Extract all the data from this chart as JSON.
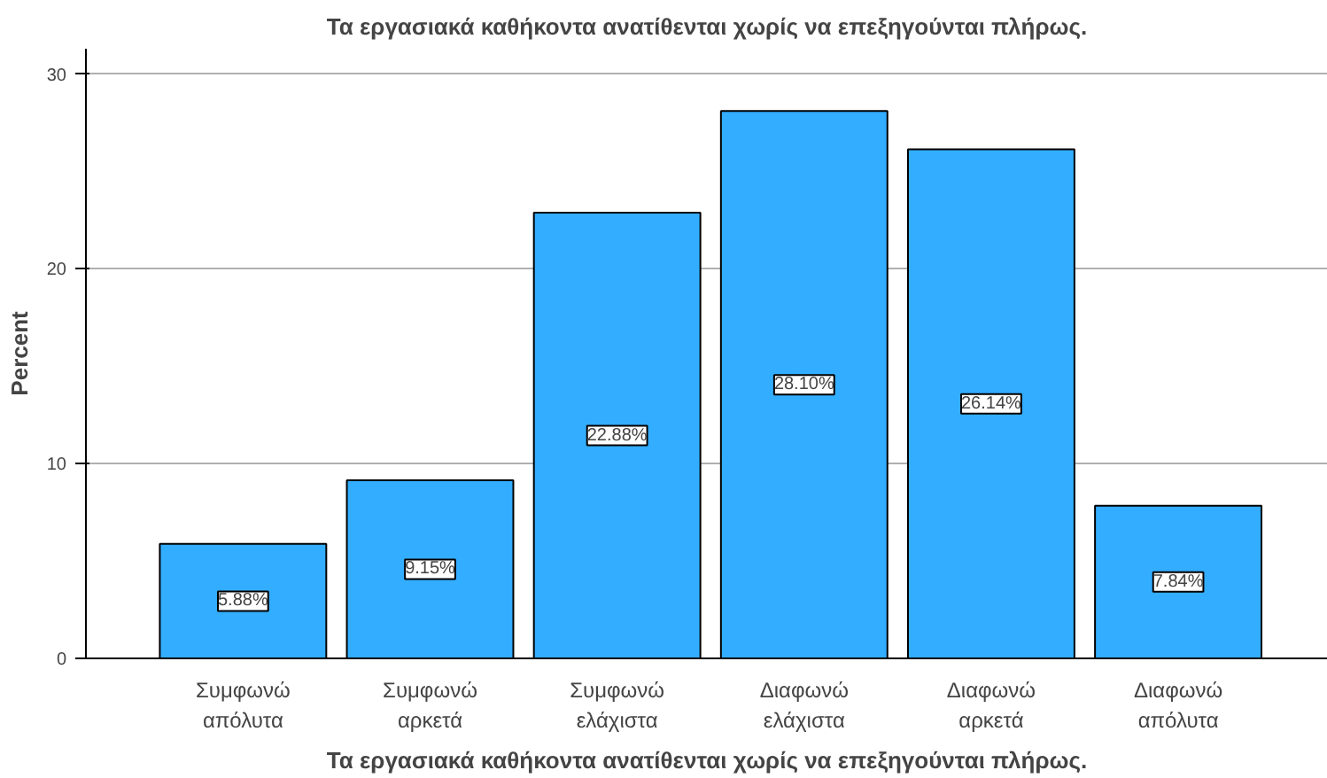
{
  "chart_data": {
    "type": "bar",
    "title": "Τα εργασιακά καθήκοντα ανατίθενται χωρίς να επεξηγούνται πλήρως.",
    "xlabel": "Τα εργασιακά καθήκοντα ανατίθενται χωρίς να επεξηγούνται πλήρως.",
    "ylabel": "Percent",
    "categories": [
      "Συμφωνώ\nαπόλυτα",
      "Συμφωνώ\nαρκετά",
      "Συμφωνώ\nελάχιστα",
      "Διαφωνώ\nελάχιστα",
      "Διαφωνώ\nαρκετά",
      "Διαφωνώ\nαπόλυτα"
    ],
    "values": [
      5.88,
      9.15,
      22.88,
      28.1,
      26.14,
      7.84
    ],
    "value_labels": [
      "5.88%",
      "9.15%",
      "22.88%",
      "28.10%",
      "26.14%",
      "7.84%"
    ],
    "color": "#33adff",
    "ylim": [
      0,
      31.3
    ],
    "yticks": [
      0,
      10,
      20,
      30
    ],
    "grid": "y"
  }
}
